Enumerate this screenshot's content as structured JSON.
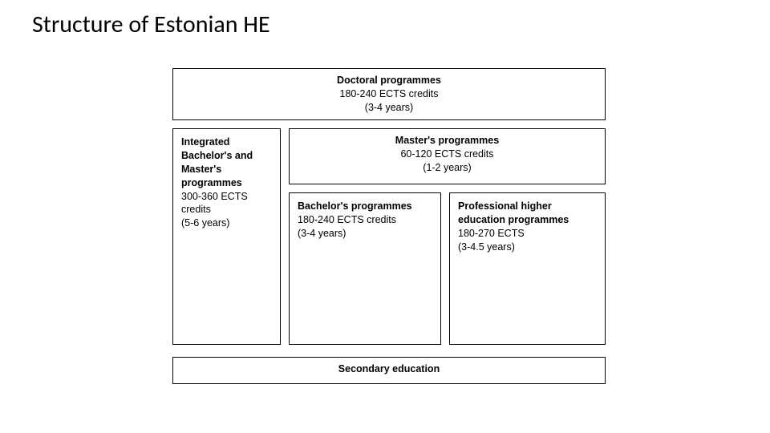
{
  "page": {
    "title": "Structure of Estonian HE"
  },
  "diagram": {
    "type": "infographic",
    "background_color": "#ffffff",
    "border_color": "#000000",
    "font_family": "Verdana",
    "label_fontsize": 12.5,
    "doctoral": {
      "title": "Doctoral programmes",
      "credits": "180-240 ECTS credits",
      "years": "(3-4 years)"
    },
    "integrated": {
      "title": "Integrated Bachelor's and Master's programmes",
      "credits": "300-360 ECTS credits",
      "years": "(5-6 years)"
    },
    "master": {
      "title": "Master's programmes",
      "credits": "60-120 ECTS credits",
      "years": "(1-2 years)"
    },
    "bachelor": {
      "title": "Bachelor's programmes",
      "credits": "180-240 ECTS credits",
      "years": "(3-4 years)"
    },
    "professional": {
      "title": "Professional higher education programmes",
      "credits": "180-270 ECTS",
      "years": "(3-4.5 years)"
    },
    "secondary": {
      "title": "Secondary education"
    }
  }
}
